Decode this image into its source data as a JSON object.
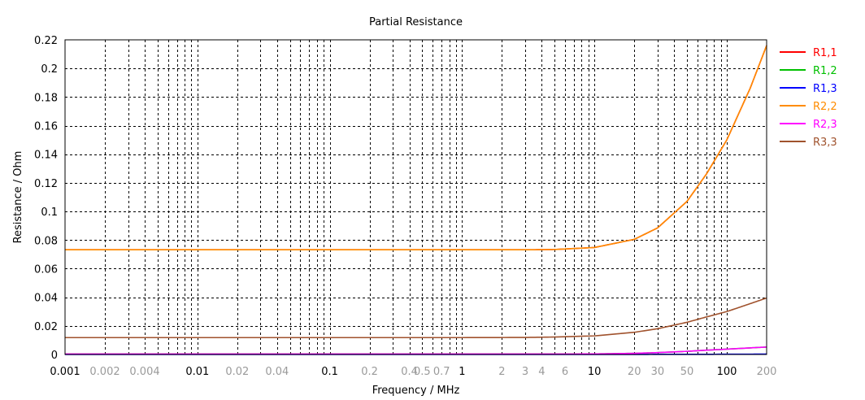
{
  "chart_data": {
    "type": "line",
    "title": "Partial Resistance",
    "xlabel": "Frequency / MHz",
    "ylabel": "Resistance / Ohm",
    "xscale": "log",
    "xlim": [
      0.001,
      200
    ],
    "ylim": [
      0,
      0.22
    ],
    "grid": true,
    "legend_position": "right",
    "x_ticks": [
      {
        "value": 0.001,
        "label": "0.001",
        "major": true
      },
      {
        "value": 0.002,
        "label": "0.002",
        "major": false
      },
      {
        "value": 0.004,
        "label": "0.004",
        "major": false
      },
      {
        "value": 0.01,
        "label": "0.01",
        "major": true
      },
      {
        "value": 0.02,
        "label": "0.02",
        "major": false
      },
      {
        "value": 0.04,
        "label": "0.04",
        "major": false
      },
      {
        "value": 0.1,
        "label": "0.1",
        "major": true
      },
      {
        "value": 0.2,
        "label": "0.2",
        "major": false
      },
      {
        "value": 0.4,
        "label": "0.4",
        "major": false
      },
      {
        "value": 0.5,
        "label": "0.5",
        "major": false
      },
      {
        "value": 0.7,
        "label": "0.7",
        "major": false
      },
      {
        "value": 1,
        "label": "1",
        "major": true
      },
      {
        "value": 2,
        "label": "2",
        "major": false
      },
      {
        "value": 3,
        "label": "3",
        "major": false
      },
      {
        "value": 4,
        "label": "4",
        "major": false
      },
      {
        "value": 6,
        "label": "6",
        "major": false
      },
      {
        "value": 10,
        "label": "10",
        "major": true
      },
      {
        "value": 20,
        "label": "20",
        "major": false
      },
      {
        "value": 30,
        "label": "30",
        "major": false
      },
      {
        "value": 50,
        "label": "50",
        "major": false
      },
      {
        "value": 100,
        "label": "100",
        "major": true
      },
      {
        "value": 200,
        "label": "200",
        "major": false
      }
    ],
    "y_ticks": [
      {
        "value": 0,
        "label": "0"
      },
      {
        "value": 0.02,
        "label": "0.02"
      },
      {
        "value": 0.04,
        "label": "0.04"
      },
      {
        "value": 0.06,
        "label": "0.06"
      },
      {
        "value": 0.08,
        "label": "0.08"
      },
      {
        "value": 0.1,
        "label": "0.1"
      },
      {
        "value": 0.12,
        "label": "0.12"
      },
      {
        "value": 0.14,
        "label": "0.14"
      },
      {
        "value": 0.16,
        "label": "0.16"
      },
      {
        "value": 0.18,
        "label": "0.18"
      },
      {
        "value": 0.2,
        "label": "0.2"
      },
      {
        "value": 0.22,
        "label": "0.22"
      }
    ],
    "x": [
      0.001,
      0.01,
      0.1,
      1,
      3,
      5,
      10,
      20,
      30,
      50,
      70,
      100,
      150,
      200
    ],
    "series": [
      {
        "name": "R1,1",
        "color": "#ff0000",
        "values": [
          0.0732,
          0.0732,
          0.0732,
          0.0732,
          0.0732,
          0.0734,
          0.0748,
          0.0805,
          0.0885,
          0.107,
          0.126,
          0.15,
          0.186,
          0.216
        ]
      },
      {
        "name": "R1,2",
        "color": "#00c000",
        "values": [
          0.0003,
          0.0003,
          0.0003,
          0.0003,
          0.0003,
          0.0003,
          0.0004,
          0.0008,
          0.0013,
          0.0022,
          0.003,
          0.0037,
          0.0046,
          0.0052
        ]
      },
      {
        "name": "R1,3",
        "color": "#0000ff",
        "values": [
          0.0,
          0.0,
          0.0,
          0.0,
          0.0,
          0.0,
          0.0,
          0.0,
          0.0001,
          0.0001,
          0.0001,
          0.0002,
          0.0002,
          0.0003
        ]
      },
      {
        "name": "R2,2",
        "color": "#ff8c00",
        "values": [
          0.0732,
          0.0732,
          0.0732,
          0.0732,
          0.0732,
          0.0734,
          0.0748,
          0.0805,
          0.0885,
          0.107,
          0.126,
          0.15,
          0.186,
          0.216
        ]
      },
      {
        "name": "R2,3",
        "color": "#ff00ff",
        "values": [
          0.0003,
          0.0003,
          0.0003,
          0.0003,
          0.0003,
          0.0003,
          0.0004,
          0.0008,
          0.0013,
          0.0022,
          0.003,
          0.0037,
          0.0046,
          0.0052
        ]
      },
      {
        "name": "R3,3",
        "color": "#a0522d",
        "values": [
          0.0118,
          0.0118,
          0.0118,
          0.0118,
          0.0119,
          0.0122,
          0.013,
          0.0155,
          0.018,
          0.0225,
          0.0262,
          0.03,
          0.0355,
          0.0395
        ]
      }
    ]
  }
}
